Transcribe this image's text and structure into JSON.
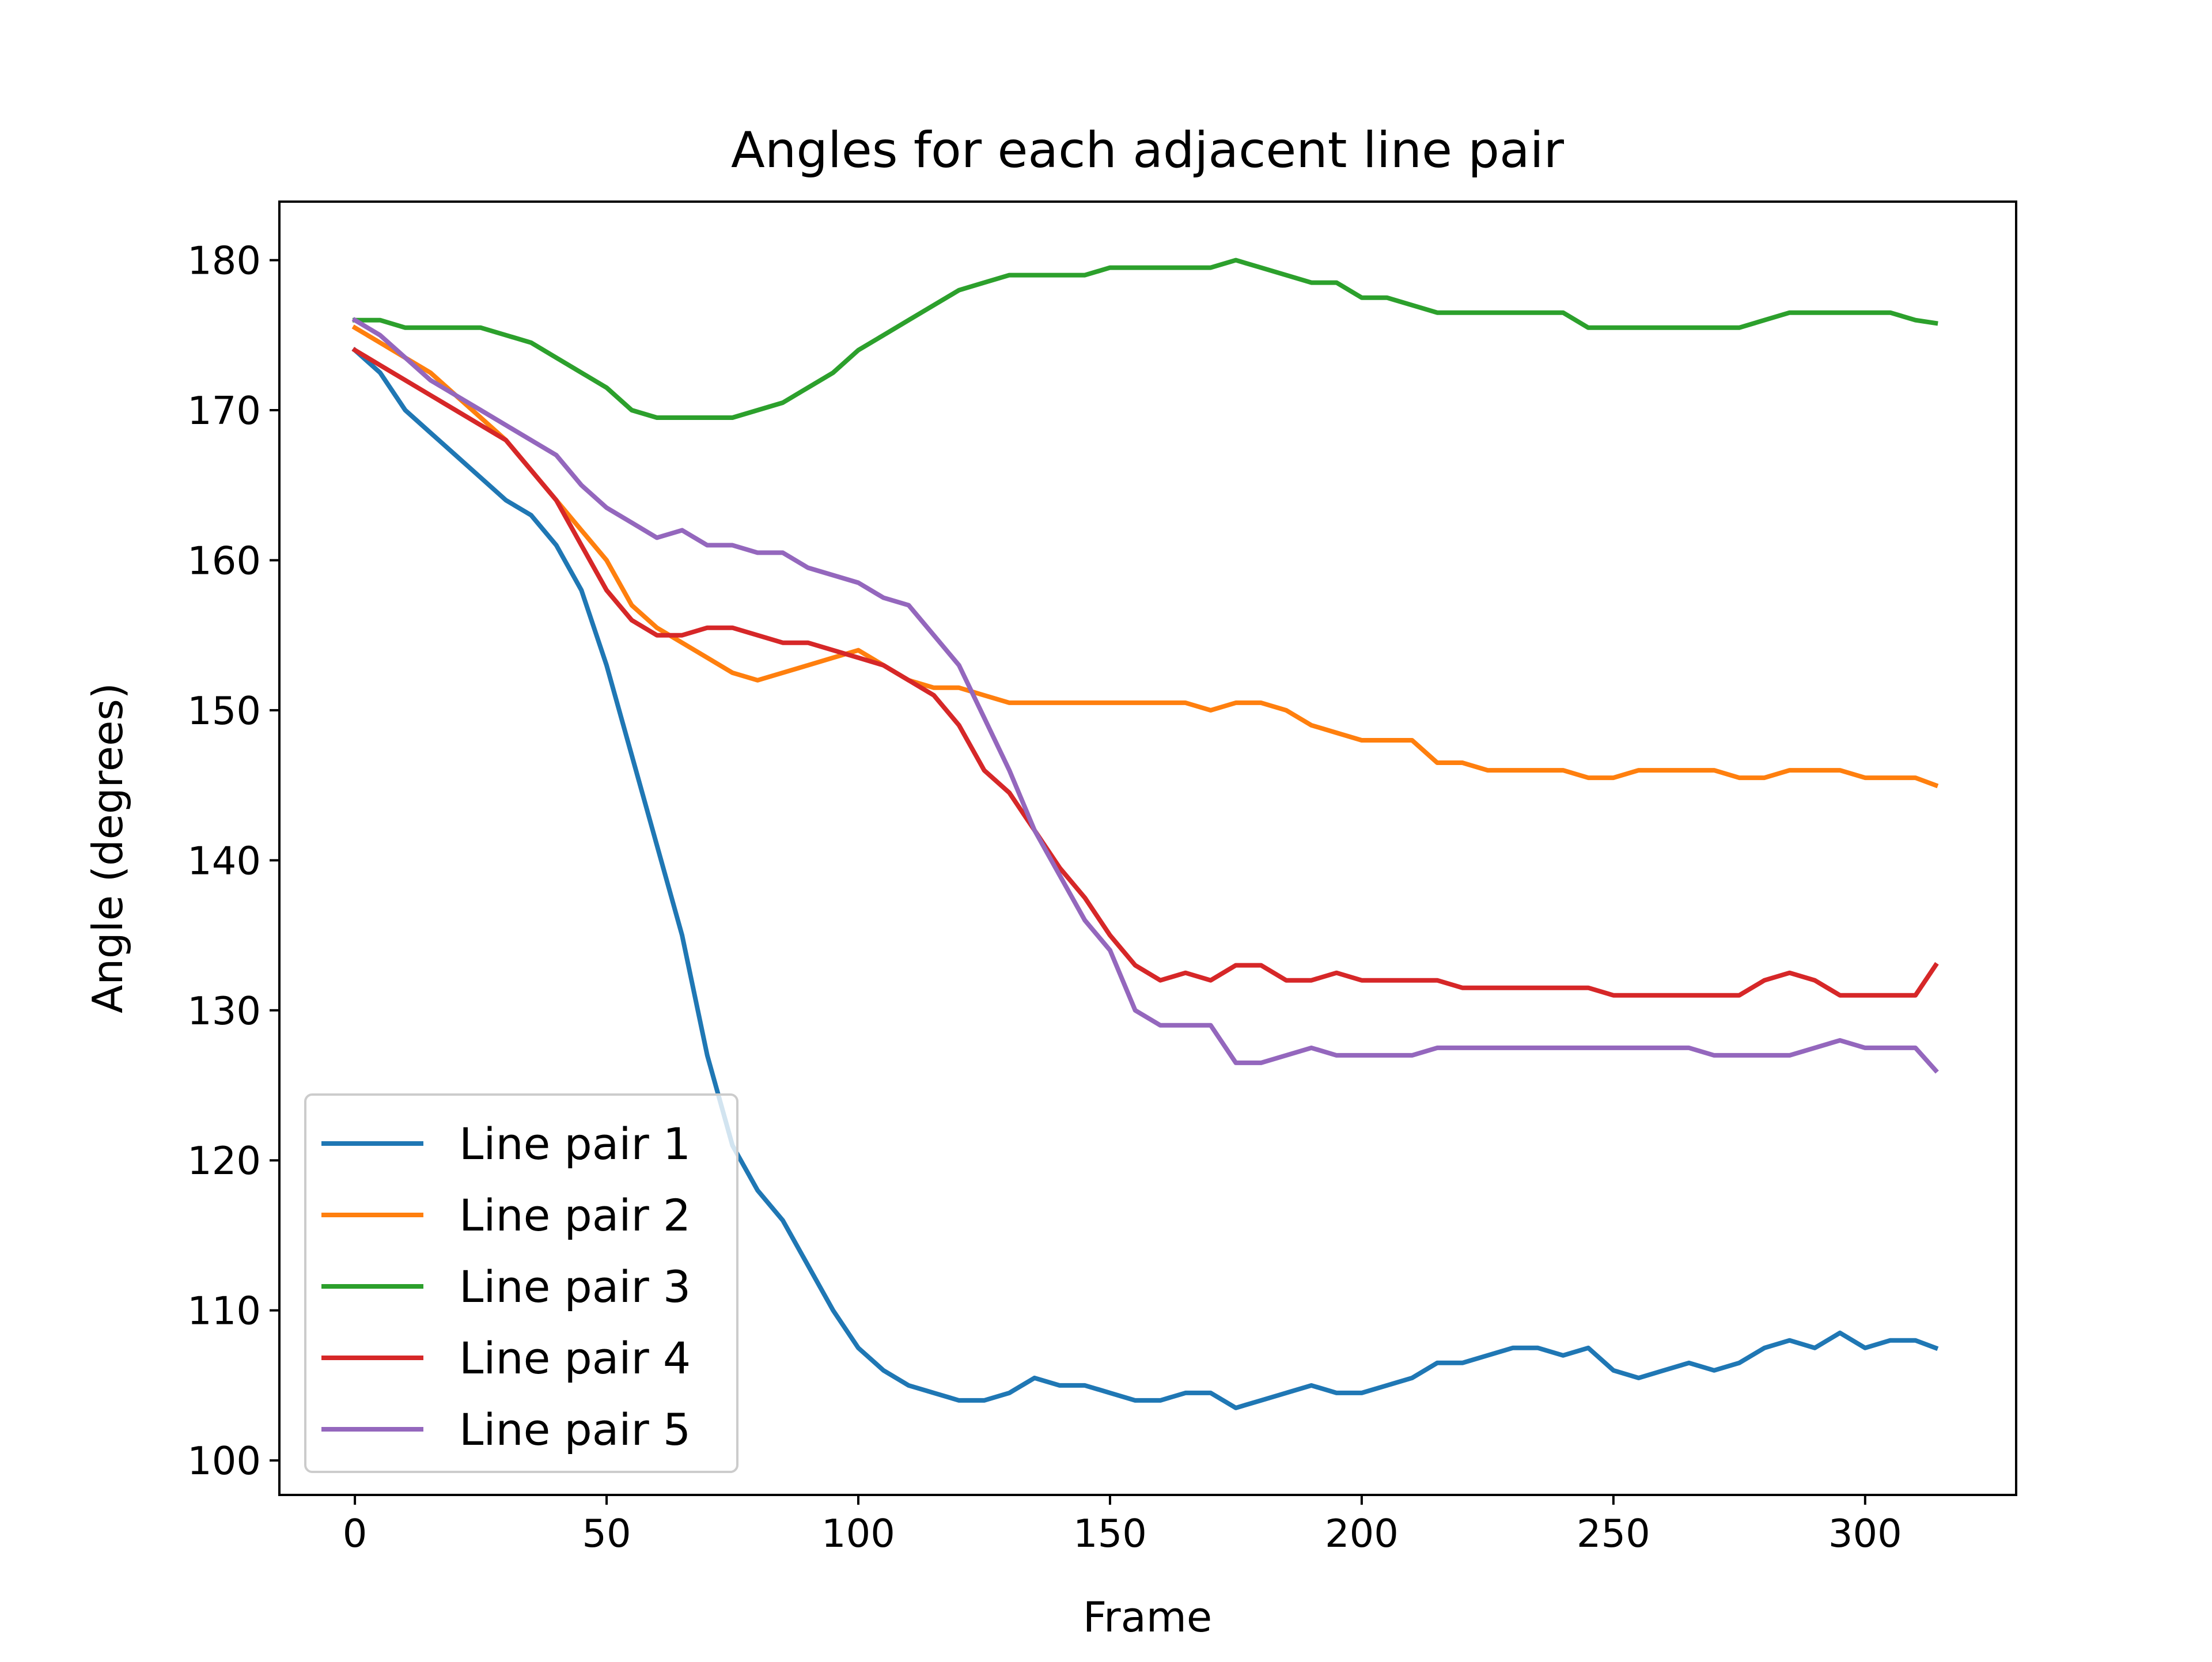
{
  "chart_data": {
    "type": "line",
    "title": "Angles for each adjacent line pair",
    "xlabel": "Frame",
    "ylabel": "Angle (degrees)",
    "xlim": [
      -15,
      330
    ],
    "ylim": [
      97.7,
      183.9
    ],
    "xticks": [
      0,
      50,
      100,
      150,
      200,
      250,
      300
    ],
    "yticks": [
      100,
      110,
      120,
      130,
      140,
      150,
      160,
      170,
      180
    ],
    "grid": false,
    "legend_position": "lower-left",
    "series": [
      {
        "name": "Line pair 1",
        "color": "#1f77b4",
        "x": [
          0,
          5,
          10,
          15,
          20,
          25,
          30,
          35,
          40,
          45,
          50,
          55,
          60,
          65,
          70,
          75,
          80,
          85,
          90,
          95,
          100,
          105,
          110,
          115,
          120,
          125,
          130,
          135,
          140,
          145,
          150,
          155,
          160,
          165,
          170,
          175,
          180,
          185,
          190,
          195,
          200,
          205,
          210,
          215,
          220,
          225,
          230,
          235,
          240,
          245,
          250,
          255,
          260,
          265,
          270,
          275,
          280,
          285,
          290,
          295,
          300,
          305,
          310,
          314
        ],
        "y": [
          174.0,
          172.5,
          170.0,
          168.5,
          167.0,
          165.5,
          164.0,
          163.0,
          161.0,
          158.0,
          153.0,
          147.0,
          141.0,
          135.0,
          127.0,
          121.0,
          118.0,
          116.0,
          113.0,
          110.0,
          107.5,
          106.0,
          105.0,
          104.5,
          104.0,
          104.0,
          104.5,
          105.5,
          105.0,
          105.0,
          104.5,
          104.0,
          104.0,
          104.5,
          104.5,
          103.5,
          104.0,
          104.5,
          105.0,
          104.5,
          104.5,
          105.0,
          105.5,
          106.5,
          106.5,
          107.0,
          107.5,
          107.5,
          107.0,
          107.5,
          106.0,
          105.5,
          106.0,
          106.5,
          106.0,
          106.5,
          107.5,
          108.0,
          107.5,
          108.5,
          107.5,
          108.0,
          108.0,
          107.5
        ]
      },
      {
        "name": "Line pair 2",
        "color": "#ff7f0e",
        "x": [
          0,
          5,
          10,
          15,
          20,
          25,
          30,
          35,
          40,
          45,
          50,
          55,
          60,
          65,
          70,
          75,
          80,
          85,
          90,
          95,
          100,
          105,
          110,
          115,
          120,
          125,
          130,
          135,
          140,
          145,
          150,
          155,
          160,
          165,
          170,
          175,
          180,
          185,
          190,
          195,
          200,
          205,
          210,
          215,
          220,
          225,
          230,
          235,
          240,
          245,
          250,
          255,
          260,
          265,
          270,
          275,
          280,
          285,
          290,
          295,
          300,
          305,
          310,
          314
        ],
        "y": [
          175.5,
          174.5,
          173.5,
          172.5,
          171.0,
          169.5,
          168.0,
          166.0,
          164.0,
          162.0,
          160.0,
          157.0,
          155.5,
          154.5,
          153.5,
          152.5,
          152.0,
          152.5,
          153.0,
          153.5,
          154.0,
          153.0,
          152.0,
          151.5,
          151.5,
          151.0,
          150.5,
          150.5,
          150.5,
          150.5,
          150.5,
          150.5,
          150.5,
          150.5,
          150.0,
          150.5,
          150.5,
          150.0,
          149.0,
          148.5,
          148.0,
          148.0,
          148.0,
          146.5,
          146.5,
          146.0,
          146.0,
          146.0,
          146.0,
          145.5,
          145.5,
          146.0,
          146.0,
          146.0,
          146.0,
          145.5,
          145.5,
          146.0,
          146.0,
          146.0,
          145.5,
          145.5,
          145.5,
          145.0
        ]
      },
      {
        "name": "Line pair 3",
        "color": "#2ca02c",
        "x": [
          0,
          5,
          10,
          15,
          20,
          25,
          30,
          35,
          40,
          45,
          50,
          55,
          60,
          65,
          70,
          75,
          80,
          85,
          90,
          95,
          100,
          105,
          110,
          115,
          120,
          125,
          130,
          135,
          140,
          145,
          150,
          155,
          160,
          165,
          170,
          175,
          180,
          185,
          190,
          195,
          200,
          205,
          210,
          215,
          220,
          225,
          230,
          235,
          240,
          245,
          250,
          255,
          260,
          265,
          270,
          275,
          280,
          285,
          290,
          295,
          300,
          305,
          310,
          314
        ],
        "y": [
          176.0,
          176.0,
          175.5,
          175.5,
          175.5,
          175.5,
          175.0,
          174.5,
          173.5,
          172.5,
          171.5,
          170.0,
          169.5,
          169.5,
          169.5,
          169.5,
          170.0,
          170.5,
          171.5,
          172.5,
          174.0,
          175.0,
          176.0,
          177.0,
          178.0,
          178.5,
          179.0,
          179.0,
          179.0,
          179.0,
          179.5,
          179.5,
          179.5,
          179.5,
          179.5,
          180.0,
          179.5,
          179.0,
          178.5,
          178.5,
          177.5,
          177.5,
          177.0,
          176.5,
          176.5,
          176.5,
          176.5,
          176.5,
          176.5,
          175.5,
          175.5,
          175.5,
          175.5,
          175.5,
          175.5,
          175.5,
          176.0,
          176.5,
          176.5,
          176.5,
          176.5,
          176.5,
          176.0,
          175.8
        ]
      },
      {
        "name": "Line pair 4",
        "color": "#d62728",
        "x": [
          0,
          5,
          10,
          15,
          20,
          25,
          30,
          35,
          40,
          45,
          50,
          55,
          60,
          65,
          70,
          75,
          80,
          85,
          90,
          95,
          100,
          105,
          110,
          115,
          120,
          125,
          130,
          135,
          140,
          145,
          150,
          155,
          160,
          165,
          170,
          175,
          180,
          185,
          190,
          195,
          200,
          205,
          210,
          215,
          220,
          225,
          230,
          235,
          240,
          245,
          250,
          255,
          260,
          265,
          270,
          275,
          280,
          285,
          290,
          295,
          300,
          305,
          310,
          314
        ],
        "y": [
          174.0,
          173.0,
          172.0,
          171.0,
          170.0,
          169.0,
          168.0,
          166.0,
          164.0,
          161.0,
          158.0,
          156.0,
          155.0,
          155.0,
          155.5,
          155.5,
          155.0,
          154.5,
          154.5,
          154.0,
          153.5,
          153.0,
          152.0,
          151.0,
          149.0,
          146.0,
          144.5,
          142.0,
          139.5,
          137.5,
          135.0,
          133.0,
          132.0,
          132.5,
          132.0,
          133.0,
          133.0,
          132.0,
          132.0,
          132.5,
          132.0,
          132.0,
          132.0,
          132.0,
          131.5,
          131.5,
          131.5,
          131.5,
          131.5,
          131.5,
          131.0,
          131.0,
          131.0,
          131.0,
          131.0,
          131.0,
          132.0,
          132.5,
          132.0,
          131.0,
          131.0,
          131.0,
          131.0,
          133.0
        ]
      },
      {
        "name": "Line pair 5",
        "color": "#9467bd",
        "x": [
          0,
          5,
          10,
          15,
          20,
          25,
          30,
          35,
          40,
          45,
          50,
          55,
          60,
          65,
          70,
          75,
          80,
          85,
          90,
          95,
          100,
          105,
          110,
          115,
          120,
          125,
          130,
          135,
          140,
          145,
          150,
          155,
          160,
          165,
          170,
          175,
          180,
          185,
          190,
          195,
          200,
          205,
          210,
          215,
          220,
          225,
          230,
          235,
          240,
          245,
          250,
          255,
          260,
          265,
          270,
          275,
          280,
          285,
          290,
          295,
          300,
          305,
          310,
          314
        ],
        "y": [
          176.0,
          175.0,
          173.5,
          172.0,
          171.0,
          170.0,
          169.0,
          168.0,
          167.0,
          165.0,
          163.5,
          162.5,
          161.5,
          162.0,
          161.0,
          161.0,
          160.5,
          160.5,
          159.5,
          159.0,
          158.5,
          157.5,
          157.0,
          155.0,
          153.0,
          149.5,
          146.0,
          142.0,
          139.0,
          136.0,
          134.0,
          130.0,
          129.0,
          129.0,
          129.0,
          126.5,
          126.5,
          127.0,
          127.5,
          127.0,
          127.0,
          127.0,
          127.0,
          127.5,
          127.5,
          127.5,
          127.5,
          127.5,
          127.5,
          127.5,
          127.5,
          127.5,
          127.5,
          127.5,
          127.0,
          127.0,
          127.0,
          127.0,
          127.5,
          128.0,
          127.5,
          127.5,
          127.5,
          126.0
        ]
      }
    ]
  }
}
